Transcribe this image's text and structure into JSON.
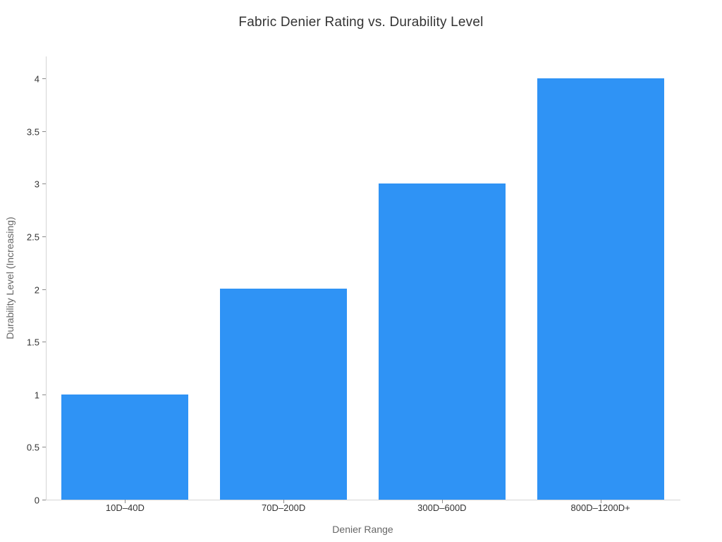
{
  "chart_data": {
    "type": "bar",
    "title": "Fabric Denier Rating vs. Durability Level",
    "xlabel": "Denier Range",
    "ylabel": "Durability Level (Increasing)",
    "categories": [
      "10D–40D",
      "70D–200D",
      "300D–600D",
      "800D–1200D+"
    ],
    "values": [
      1,
      2,
      3,
      4
    ],
    "yticks": [
      0,
      0.5,
      1,
      1.5,
      2,
      2.5,
      3,
      3.5,
      4
    ],
    "ytick_labels": [
      "0",
      "0.5",
      "1",
      "1.5",
      "2",
      "2.5",
      "3",
      "3.5",
      "4"
    ],
    "ylim": [
      0,
      4.2
    ],
    "grid": false,
    "legend": "none",
    "colors": {
      "bar": "#2f93f5",
      "axis_line": "#d5d5d5",
      "tick_mark": "#8a8a8a",
      "tick_label": "#333333",
      "axis_title": "#666666",
      "title": "#333333",
      "background": "#ffffff"
    }
  }
}
